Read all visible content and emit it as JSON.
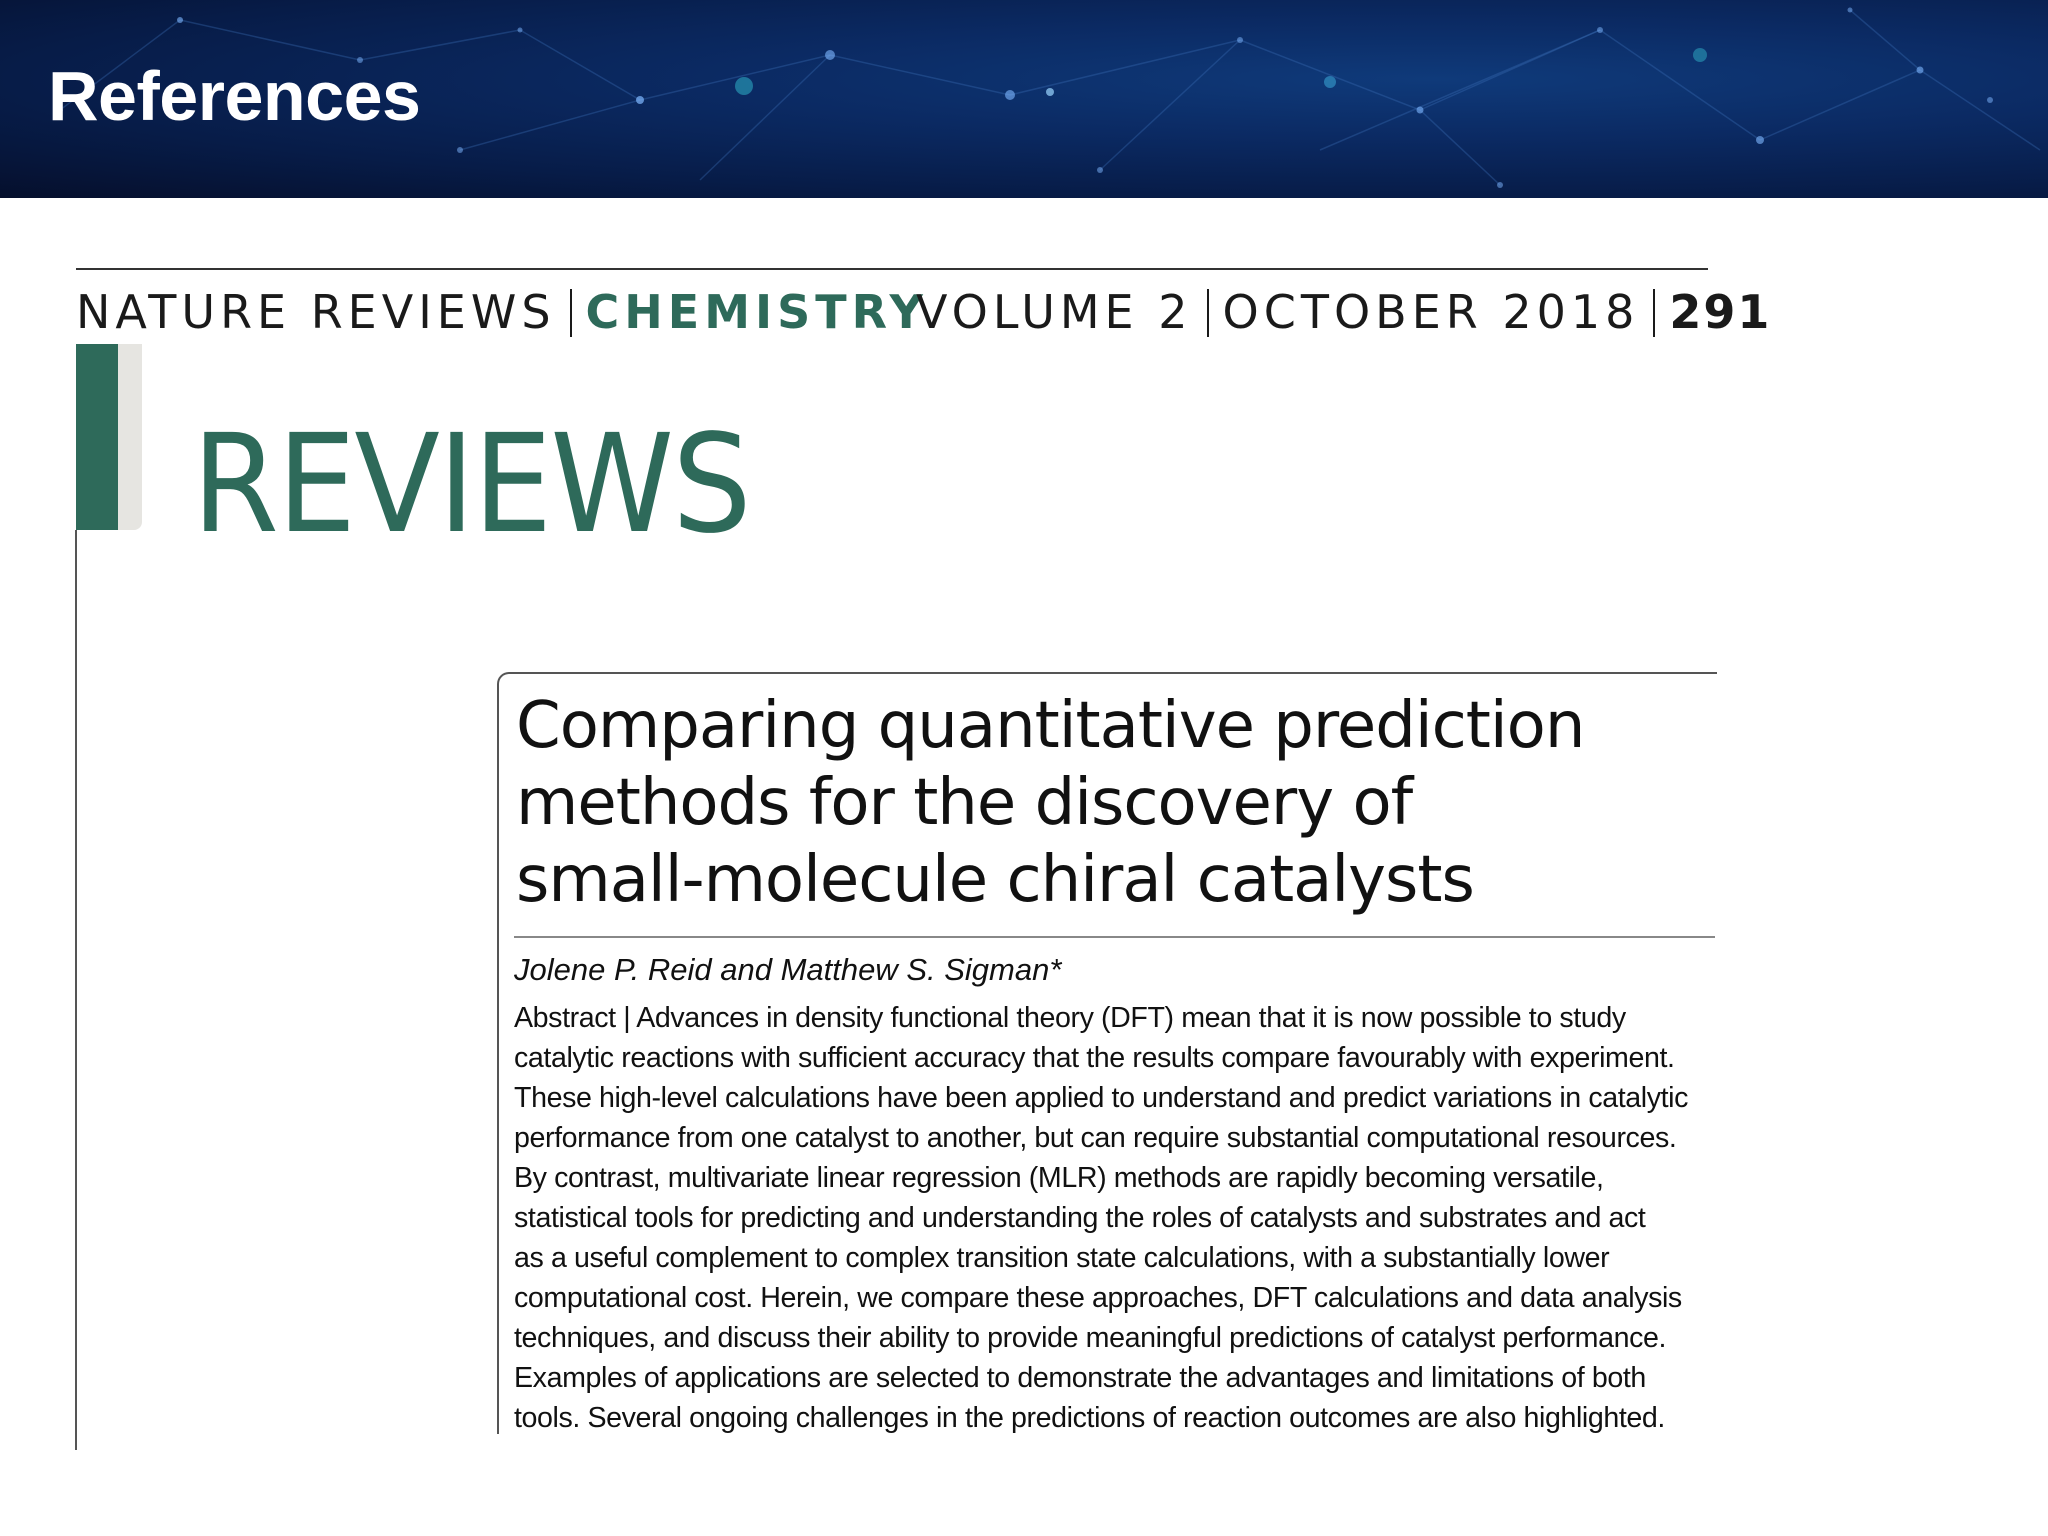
{
  "slide": {
    "title": "References"
  },
  "paper": {
    "masthead": {
      "journal": "NATURE REVIEWS",
      "section": "CHEMISTRY",
      "volume": "VOLUME 2",
      "date": "OCTOBER 2018",
      "page": "291"
    },
    "article_type": "REVIEWS",
    "title_lines": [
      "Comparing quantitative prediction",
      "methods for the discovery of",
      "small-molecule chiral catalysts"
    ],
    "authors": "Jolene P. Reid and Matthew S. Sigman*",
    "abstract_lines": [
      "Abstract | Advances in density functional theory (DFT) mean that it is now possible to study",
      "catalytic reactions with sufficient accuracy that the results compare favourably with experiment.",
      "These high-level calculations have been applied to understand and predict variations in catalytic",
      "performance from one catalyst to another, but can require substantial computational resources.",
      "By contrast, multivariate linear regression (MLR) methods are rapidly becoming versatile,",
      "statistical tools for predicting and understanding the roles of catalysts and substrates and act",
      "as a useful complement to complex transition state calculations, with a substantially lower",
      "computational cost. Herein, we compare these approaches, DFT calculations and data analysis",
      "techniques, and discuss their ability to provide meaningful predictions of catalyst performance.",
      "Examples of applications are selected to demonstrate the advantages and limitations of both",
      "tools. Several ongoing challenges in the predictions of reaction outcomes are also highlighted."
    ]
  },
  "colors": {
    "banner_dark": "#050f2c",
    "banner_mid": "#0b2a63",
    "journal_green": "#2e6a5a",
    "text": "#111111"
  }
}
